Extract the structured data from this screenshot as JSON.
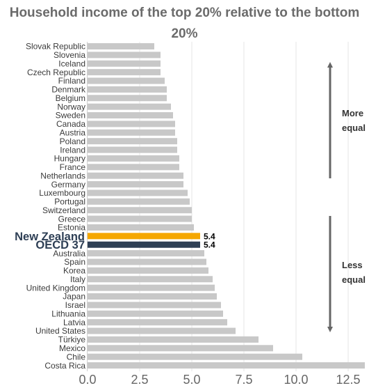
{
  "chart_data": {
    "type": "bar",
    "orientation": "horizontal",
    "title": "Household income of the top 20% relative to the bottom 20%",
    "categories": [
      "Slovak Republic",
      "Slovenia",
      "Iceland",
      "Czech Republic",
      "Finland",
      "Denmark",
      "Belgium",
      "Norway",
      "Sweden",
      "Canada",
      "Austria",
      "Poland",
      "Ireland",
      "Hungary",
      "France",
      "Netherlands",
      "Germany",
      "Luxembourg",
      "Portugal",
      "Switzerland",
      "Greece",
      "Estonia",
      "New Zealand",
      "OECD 37",
      "Australia",
      "Spain",
      "Korea",
      "Italy",
      "United Kingdom",
      "Japan",
      "Israel",
      "Lithuania",
      "Latvia",
      "United States",
      "Türkiye",
      "Mexico",
      "Chile",
      "Costa Rica"
    ],
    "values": [
      3.2,
      3.5,
      3.5,
      3.5,
      3.7,
      3.8,
      3.8,
      4.0,
      4.1,
      4.2,
      4.2,
      4.3,
      4.3,
      4.4,
      4.4,
      4.6,
      4.6,
      4.8,
      4.9,
      5.0,
      5.0,
      5.1,
      5.4,
      5.4,
      5.6,
      5.7,
      5.8,
      6.0,
      6.1,
      6.2,
      6.4,
      6.5,
      6.7,
      7.1,
      8.2,
      8.9,
      10.3,
      13.3
    ],
    "highlights": [
      {
        "category": "New Zealand",
        "value_label": "5.4",
        "color": "#f5a700"
      },
      {
        "category": "OECD 37",
        "value_label": "5.4",
        "color": "#2e3f55"
      }
    ],
    "bar_color": "#c8c8c8",
    "xlim": [
      0,
      13.5
    ],
    "xticks": [
      "0.0",
      "2.5",
      "5.0",
      "7.5",
      "10.0",
      "12.5"
    ],
    "xtick_values": [
      0,
      2.5,
      5,
      7.5,
      10,
      12.5
    ],
    "grid": true,
    "annotations": [
      {
        "text": [
          "More",
          "equal"
        ],
        "arrow": "up"
      },
      {
        "text": [
          "Less",
          "equal"
        ],
        "arrow": "down"
      }
    ]
  }
}
